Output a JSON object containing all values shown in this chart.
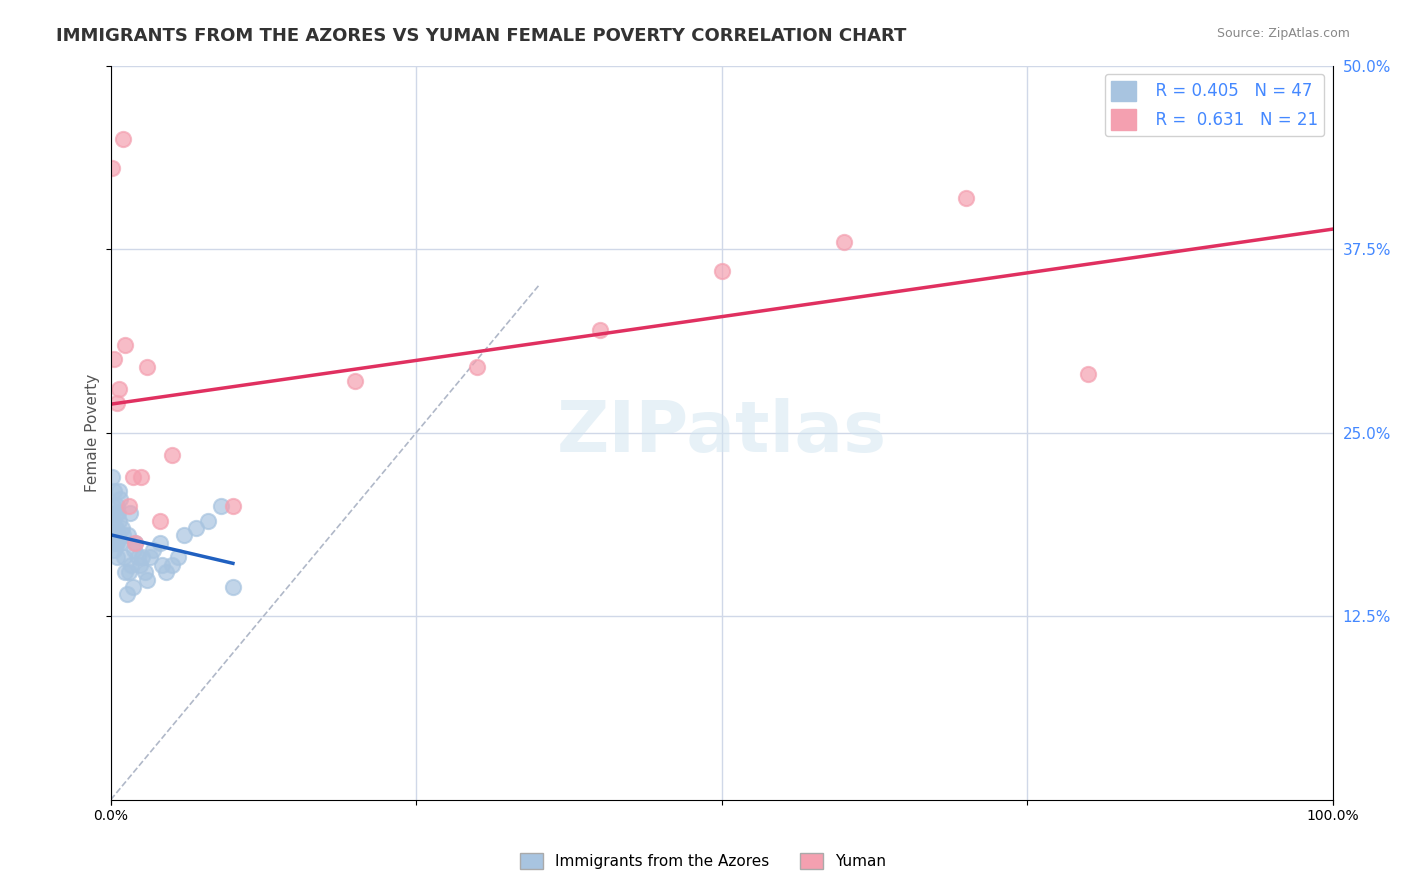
{
  "title": "IMMIGRANTS FROM THE AZORES VS YUMAN FEMALE POVERTY CORRELATION CHART",
  "source": "Source: ZipAtlas.com",
  "xlabel_bottom": [
    "Immigrants from the Azores",
    "Yuman"
  ],
  "ylabel": "Female Poverty",
  "xlim": [
    0,
    1.0
  ],
  "ylim": [
    0,
    0.5
  ],
  "xtick_labels": [
    "0.0%",
    "100.0%"
  ],
  "ytick_labels": [
    "12.5%",
    "25.0%",
    "37.5%",
    "50.0%"
  ],
  "ytick_values": [
    0.125,
    0.25,
    0.375,
    0.5
  ],
  "xtick_values": [
    0.0,
    1.0
  ],
  "r_azores": 0.405,
  "n_azores": 47,
  "r_yuman": 0.631,
  "n_yuman": 21,
  "color_azores": "#a8c4e0",
  "color_yuman": "#f4a0b0",
  "line_color_azores": "#2060c0",
  "line_color_yuman": "#e03060",
  "diagonal_color": "#b0b8c8",
  "background_color": "#ffffff",
  "grid_color": "#d0d8e8",
  "watermark": "ZIPatlas",
  "title_fontsize": 13,
  "axis_label_fontsize": 11,
  "tick_label_fontsize": 10,
  "azores_x": [
    0.001,
    0.002,
    0.002,
    0.003,
    0.003,
    0.003,
    0.004,
    0.004,
    0.004,
    0.005,
    0.005,
    0.005,
    0.006,
    0.006,
    0.007,
    0.007,
    0.008,
    0.008,
    0.009,
    0.01,
    0.011,
    0.012,
    0.013,
    0.014,
    0.015,
    0.016,
    0.017,
    0.018,
    0.019,
    0.02,
    0.022,
    0.024,
    0.026,
    0.028,
    0.03,
    0.032,
    0.035,
    0.04,
    0.042,
    0.045,
    0.05,
    0.055,
    0.06,
    0.07,
    0.08,
    0.09,
    0.1
  ],
  "azores_y": [
    0.22,
    0.2,
    0.19,
    0.21,
    0.18,
    0.17,
    0.195,
    0.185,
    0.175,
    0.2,
    0.175,
    0.165,
    0.195,
    0.18,
    0.21,
    0.19,
    0.205,
    0.175,
    0.185,
    0.18,
    0.165,
    0.155,
    0.14,
    0.18,
    0.155,
    0.195,
    0.16,
    0.145,
    0.17,
    0.175,
    0.165,
    0.16,
    0.165,
    0.155,
    0.15,
    0.165,
    0.17,
    0.175,
    0.16,
    0.155,
    0.16,
    0.165,
    0.18,
    0.185,
    0.19,
    0.2,
    0.145
  ],
  "yuman_x": [
    0.001,
    0.003,
    0.005,
    0.007,
    0.01,
    0.012,
    0.015,
    0.018,
    0.02,
    0.025,
    0.03,
    0.04,
    0.05,
    0.1,
    0.2,
    0.3,
    0.4,
    0.5,
    0.6,
    0.7,
    0.8
  ],
  "yuman_y": [
    0.43,
    0.3,
    0.27,
    0.28,
    0.45,
    0.31,
    0.2,
    0.22,
    0.175,
    0.22,
    0.295,
    0.19,
    0.235,
    0.2,
    0.285,
    0.295,
    0.32,
    0.36,
    0.38,
    0.41,
    0.29
  ]
}
